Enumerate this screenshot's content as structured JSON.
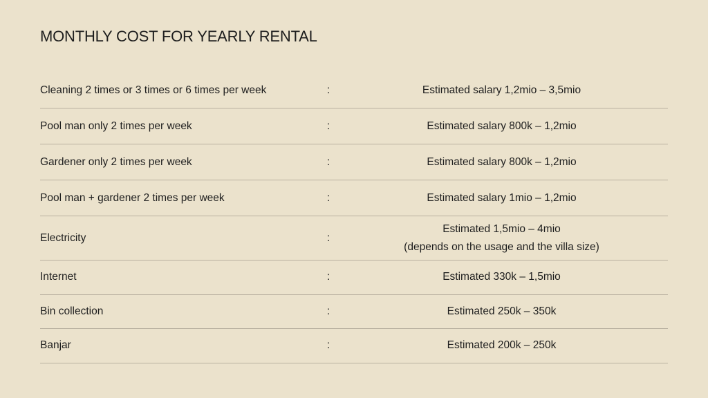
{
  "title": "MONTHLY COST FOR YEARLY RENTAL",
  "rows": [
    {
      "label": "Cleaning 2 times or 3 times or 6 times per week",
      "sep": ":",
      "value": "Estimated salary 1,2mio – 3,5mio"
    },
    {
      "label": "Pool man only 2 times per week",
      "sep": ":",
      "value": "Estimated salary 800k – 1,2mio"
    },
    {
      "label": "Gardener only 2 times per week",
      "sep": ":",
      "value": "Estimated salary 800k – 1,2mio"
    },
    {
      "label": "Pool man + gardener 2 times per week",
      "sep": ":",
      "value": "Estimated salary 1mio – 1,2mio"
    },
    {
      "label": "Electricity",
      "sep": ":",
      "value": "Estimated 1,5mio – 4mio",
      "note": "(depends on the usage and the villa size)"
    },
    {
      "label": "Internet",
      "sep": ":",
      "value": "Estimated 330k – 1,5mio"
    },
    {
      "label": "Bin collection",
      "sep": ":",
      "value": "Estimated 250k – 350k"
    },
    {
      "label": "Banjar",
      "sep": ":",
      "value": "Estimated 200k – 250k"
    }
  ]
}
